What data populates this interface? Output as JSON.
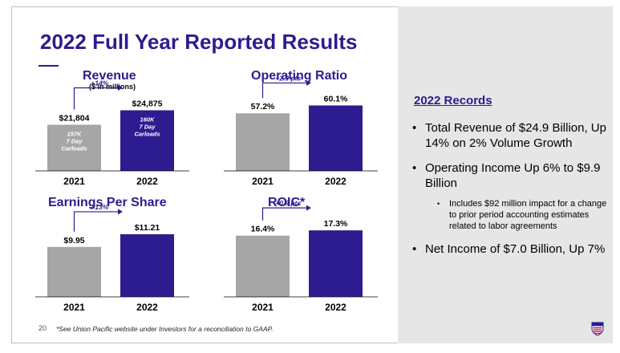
{
  "slide": {
    "title": "2022 Full Year Reported Results",
    "page_number": "20",
    "footnote": "*See Union Pacific website under Investors for a reconciliation to GAAP."
  },
  "colors": {
    "bar_2021": "#a6a6a6",
    "bar_2022": "#2d1c8f",
    "title": "#2d1c8f",
    "panel_bg": "#e6e6e6"
  },
  "chart_data": [
    {
      "type": "bar",
      "title": "Revenue",
      "subtitle": "($ in millions)",
      "categories": [
        "2021",
        "2022"
      ],
      "values": [
        21804,
        24875
      ],
      "value_labels": [
        "$21,804",
        "$24,875"
      ],
      "bar_notes": [
        "157K\n7 Day\nCarloads",
        "160K\n7 Day\nCarloads"
      ],
      "change_label": "+14%",
      "ylim": [
        12000,
        27000
      ]
    },
    {
      "type": "bar",
      "title": "Operating Ratio",
      "categories": [
        "2021",
        "2022"
      ],
      "values": [
        57.2,
        60.1
      ],
      "value_labels": [
        "57.2%",
        "60.1%"
      ],
      "change_label": "+2.9 pts",
      "ylim": [
        36,
        62
      ]
    },
    {
      "type": "bar",
      "title": "Earnings Per Share",
      "categories": [
        "2021",
        "2022"
      ],
      "values": [
        9.95,
        11.21
      ],
      "value_labels": [
        "$9.95",
        "$11.21"
      ],
      "change_label": "+13%",
      "ylim": [
        5,
        12
      ]
    },
    {
      "type": "bar",
      "title": "ROIC*",
      "categories": [
        "2021",
        "2022"
      ],
      "values": [
        16.4,
        17.3
      ],
      "value_labels": [
        "16.4%",
        "17.3%"
      ],
      "change_label": "+0.9 pts",
      "ylim": [
        6,
        18
      ]
    }
  ],
  "records": {
    "heading": "2022 Records",
    "items": [
      {
        "level": 1,
        "text": "Total Revenue of $24.9 Billion, Up 14% on 2% Volume Growth"
      },
      {
        "level": 1,
        "text": "Operating Income Up 6% to $9.9 Billion"
      },
      {
        "level": 2,
        "text": "Includes $92 million impact for a change to prior period accounting estimates related to labor agreements"
      },
      {
        "level": 1,
        "text": "Net Income of $7.0 Billion, Up 7%"
      }
    ]
  },
  "logo": {
    "icon": "union-pacific-shield-icon"
  }
}
